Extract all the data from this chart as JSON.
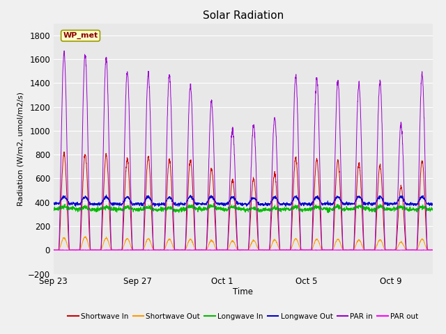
{
  "title": "Solar Radiation",
  "ylabel": "Radiation (W/m2, umol/m2/s)",
  "xlabel": "Time",
  "ylim": [
    -200,
    1900
  ],
  "yticks": [
    -200,
    0,
    200,
    400,
    600,
    800,
    1000,
    1200,
    1400,
    1600,
    1800
  ],
  "background_color": "#f0f0f0",
  "plot_bg_color": "#e8e8e8",
  "legend_entries": [
    "Shortwave In",
    "Shortwave Out",
    "Longwave In",
    "Longwave Out",
    "PAR in",
    "PAR out"
  ],
  "legend_colors": [
    "#cc0000",
    "#ff9900",
    "#00bb00",
    "#0000cc",
    "#9900cc",
    "#ff00ff"
  ],
  "legend_linestyles": [
    "-",
    "-",
    "-",
    "-",
    "-",
    "-"
  ],
  "wp_met_label": "WP_met",
  "xtick_labels": [
    "Sep 23",
    "Sep 27",
    "Oct 1",
    "Oct 5",
    "Oct 9"
  ],
  "grid_color": "#ffffff",
  "title_fontsize": 11,
  "sw_in_peaks": [
    810,
    800,
    800,
    760,
    780,
    760,
    750,
    680,
    590,
    600,
    640,
    770,
    760,
    750,
    720,
    710,
    530,
    750
  ],
  "sw_out_peaks": [
    100,
    110,
    100,
    95,
    95,
    90,
    90,
    80,
    75,
    80,
    85,
    95,
    90,
    90,
    85,
    85,
    65,
    90
  ],
  "par_in_peaks": [
    1650,
    1640,
    1610,
    1500,
    1480,
    1470,
    1380,
    1250,
    1020,
    1060,
    1110,
    1450,
    1440,
    1420,
    1390,
    1410,
    1050,
    1470
  ],
  "lw_in_base": 340,
  "lw_out_base": 385,
  "n_days": 18,
  "xtick_positions": [
    0,
    96,
    192,
    288,
    384
  ]
}
